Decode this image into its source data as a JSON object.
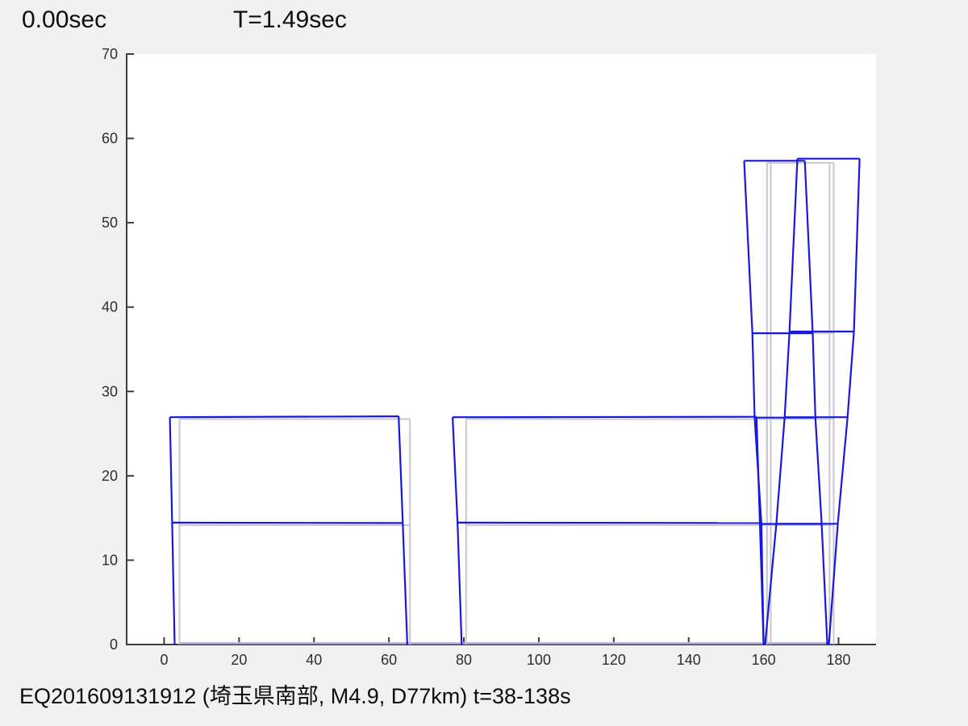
{
  "header": {
    "time_label": "0.00sec",
    "period_label": "T=1.49sec"
  },
  "footer": {
    "caption": "EQ201609131912 (埼玉県南部, M4.9, D77km) t=38-138s"
  },
  "chart_data": {
    "type": "line",
    "title": "",
    "xlabel": "",
    "ylabel": "",
    "xlim": [
      -10,
      190
    ],
    "ylim": [
      0,
      70
    ],
    "xticks": [
      0,
      20,
      40,
      60,
      80,
      100,
      120,
      140,
      160,
      180
    ],
    "yticks": [
      0,
      10,
      20,
      30,
      40,
      50,
      60,
      70
    ],
    "grid": false,
    "legend": "none",
    "colors": {
      "deformed": "#1818dd",
      "undeformed": "#c7c7cf",
      "ground": "#b4b4e4",
      "axis": "#3c3c3c",
      "tick_text": "#2e2e2e",
      "plot_bg": "#ffffff",
      "fig_bg": "#f1f1f1"
    },
    "series": [
      {
        "name": "undeformed-frame-1",
        "color_key": "undeformed",
        "width": 2,
        "polylines": [
          [
            [
              4.1,
              0
            ],
            [
              4.1,
              26.73
            ]
          ],
          [
            [
              65.6,
              0
            ],
            [
              65.6,
              26.73
            ]
          ],
          [
            [
              4.1,
              26.73
            ],
            [
              65.6,
              26.73
            ]
          ],
          [
            [
              4.1,
              14.15
            ],
            [
              65.6,
              14.15
            ]
          ]
        ]
      },
      {
        "name": "undeformed-frame-2",
        "color_key": "undeformed",
        "width": 2,
        "polylines": [
          [
            [
              80.6,
              0
            ],
            [
              80.6,
              26.73
            ]
          ],
          [
            [
              160.9,
              0
            ],
            [
              160.9,
              26.73
            ]
          ],
          [
            [
              80.6,
              26.73
            ],
            [
              160.9,
              26.73
            ]
          ],
          [
            [
              80.6,
              14.15
            ],
            [
              160.9,
              14.15
            ]
          ]
        ]
      },
      {
        "name": "undeformed-tower",
        "color_key": "undeformed",
        "width": 2,
        "polylines": [
          [
            [
              160.9,
              0
            ],
            [
              160.9,
              57.1
            ]
          ],
          [
            [
              161.9,
              0
            ],
            [
              161.9,
              57.1
            ]
          ],
          [
            [
              177.6,
              0
            ],
            [
              177.6,
              57.1
            ]
          ],
          [
            [
              178.7,
              0
            ],
            [
              178.7,
              57.1
            ]
          ],
          [
            [
              160.9,
              57.1
            ],
            [
              178.7,
              57.1
            ]
          ],
          [
            [
              160.9,
              36.9
            ],
            [
              178.7,
              36.9
            ]
          ],
          [
            [
              160.9,
              26.73
            ],
            [
              178.7,
              26.73
            ]
          ],
          [
            [
              160.9,
              14.15
            ],
            [
              178.7,
              14.15
            ]
          ]
        ]
      },
      {
        "name": "ground-line",
        "color_key": "ground",
        "width": 2.5,
        "polylines": [
          [
            [
              4.1,
              0.15
            ],
            [
              177.6,
              0.15
            ]
          ]
        ]
      },
      {
        "name": "deformed-frame-1",
        "color_key": "deformed",
        "width": 2.2,
        "polylines": [
          [
            [
              2.8,
              0
            ],
            [
              2.15,
              14.45
            ],
            [
              1.55,
              26.95
            ]
          ],
          [
            [
              64.9,
              0
            ],
            [
              63.7,
              14.4
            ],
            [
              62.6,
              27.05
            ]
          ],
          [
            [
              1.55,
              26.95
            ],
            [
              62.6,
              27.05
            ]
          ],
          [
            [
              2.15,
              14.45
            ],
            [
              63.7,
              14.4
            ]
          ]
        ]
      },
      {
        "name": "deformed-frame-2",
        "color_key": "deformed",
        "width": 2.2,
        "polylines": [
          [
            [
              79.4,
              0
            ],
            [
              78.3,
              14.45
            ],
            [
              77.0,
              26.95
            ]
          ],
          [
            [
              160.0,
              0
            ],
            [
              159.0,
              14.4
            ],
            [
              158.1,
              27.0
            ]
          ],
          [
            [
              77.0,
              26.95
            ],
            [
              158.1,
              27.0
            ]
          ],
          [
            [
              78.3,
              14.45
            ],
            [
              159.0,
              14.4
            ]
          ]
        ]
      },
      {
        "name": "deformed-tower-frame-near",
        "color_key": "deformed",
        "width": 2.2,
        "polylines": [
          [
            [
              160.0,
              0
            ],
            [
              159.4,
              14.3
            ],
            [
              157.6,
              26.9
            ],
            [
              157.0,
              36.9
            ],
            [
              154.8,
              57.35
            ]
          ],
          [
            [
              177.0,
              0
            ],
            [
              175.5,
              14.3
            ],
            [
              173.8,
              26.9
            ],
            [
              173.1,
              36.9
            ],
            [
              171.0,
              57.35
            ]
          ],
          [
            [
              154.8,
              57.35
            ],
            [
              171.0,
              57.35
            ]
          ],
          [
            [
              157.0,
              36.9
            ],
            [
              173.1,
              36.9
            ]
          ],
          [
            [
              157.6,
              26.9
            ],
            [
              173.8,
              26.9
            ]
          ],
          [
            [
              159.4,
              14.3
            ],
            [
              175.5,
              14.3
            ]
          ]
        ]
      },
      {
        "name": "deformed-tower-frame-far",
        "color_key": "deformed",
        "width": 2.2,
        "polylines": [
          [
            [
              160.4,
              0
            ],
            [
              163.4,
              14.32
            ],
            [
              165.6,
              26.95
            ],
            [
              166.9,
              37.1
            ],
            [
              169.0,
              57.6
            ]
          ],
          [
            [
              177.4,
              0
            ],
            [
              179.8,
              14.32
            ],
            [
              182.4,
              26.95
            ],
            [
              184.1,
              37.1
            ],
            [
              185.6,
              57.6
            ]
          ],
          [
            [
              169.0,
              57.6
            ],
            [
              185.6,
              57.6
            ]
          ],
          [
            [
              166.9,
              37.1
            ],
            [
              184.1,
              37.1
            ]
          ],
          [
            [
              165.6,
              26.95
            ],
            [
              182.4,
              26.95
            ]
          ],
          [
            [
              163.4,
              14.32
            ],
            [
              179.8,
              14.32
            ]
          ]
        ]
      }
    ]
  }
}
